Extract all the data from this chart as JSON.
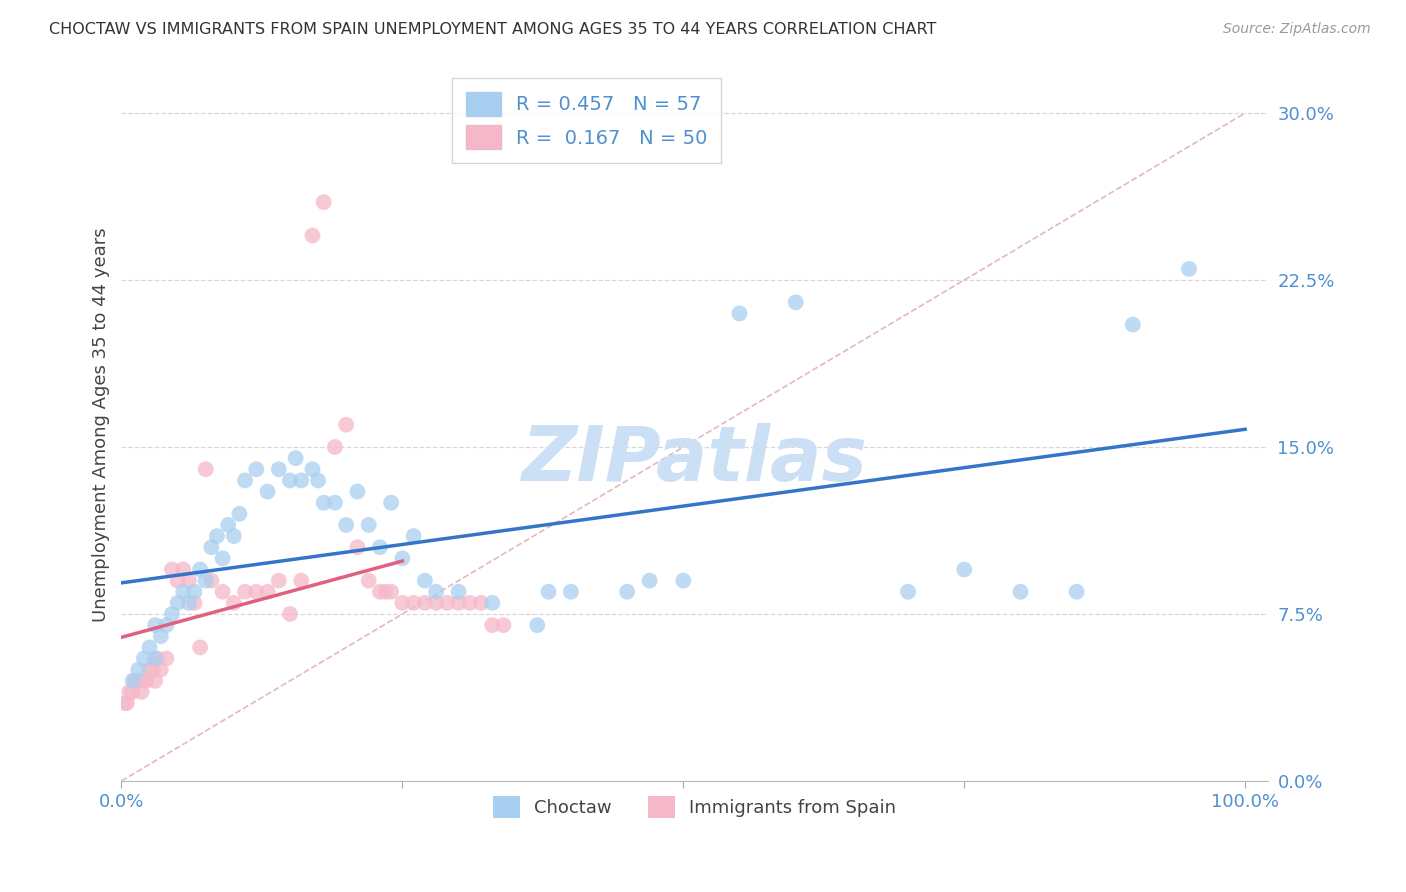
{
  "title": "CHOCTAW VS IMMIGRANTS FROM SPAIN UNEMPLOYMENT AMONG AGES 35 TO 44 YEARS CORRELATION CHART",
  "source": "Source: ZipAtlas.com",
  "ylabel": "Unemployment Among Ages 35 to 44 years",
  "ylabel_ticks": [
    0.0,
    7.5,
    15.0,
    22.5,
    30.0
  ],
  "xlim": [
    0,
    102
  ],
  "ylim": [
    0,
    32
  ],
  "choctaw_R": 0.457,
  "choctaw_N": 57,
  "spain_R": 0.167,
  "spain_N": 50,
  "choctaw_color": "#a8cff0",
  "spain_color": "#f5b8c8",
  "choctaw_line_color": "#3575c8",
  "spain_line_color": "#e06080",
  "diagonal_color": "#e0b0b8",
  "grid_color": "#d8d8d8",
  "watermark_color": "#cce0f5",
  "tick_color": "#5090d0",
  "background_color": "#ffffff",
  "choctaw_x": [
    1.0,
    1.5,
    2.0,
    2.5,
    3.0,
    3.0,
    3.5,
    4.0,
    4.5,
    5.0,
    5.5,
    6.0,
    6.5,
    7.0,
    7.5,
    8.0,
    8.5,
    9.0,
    9.5,
    10.0,
    10.5,
    11.0,
    12.0,
    13.0,
    14.0,
    15.0,
    15.5,
    16.0,
    17.0,
    17.5,
    18.0,
    19.0,
    20.0,
    21.0,
    22.0,
    23.0,
    24.0,
    25.0,
    26.0,
    27.0,
    28.0,
    30.0,
    33.0,
    37.0,
    38.0,
    40.0,
    45.0,
    47.0,
    50.0,
    55.0,
    60.0,
    70.0,
    75.0,
    80.0,
    85.0,
    90.0,
    95.0
  ],
  "choctaw_y": [
    4.5,
    5.0,
    5.5,
    6.0,
    5.5,
    7.0,
    6.5,
    7.0,
    7.5,
    8.0,
    8.5,
    8.0,
    8.5,
    9.5,
    9.0,
    10.5,
    11.0,
    10.0,
    11.5,
    11.0,
    12.0,
    13.5,
    14.0,
    13.0,
    14.0,
    13.5,
    14.5,
    13.5,
    14.0,
    13.5,
    12.5,
    12.5,
    11.5,
    13.0,
    11.5,
    10.5,
    12.5,
    10.0,
    11.0,
    9.0,
    8.5,
    8.5,
    8.0,
    7.0,
    8.5,
    8.5,
    8.5,
    9.0,
    9.0,
    21.0,
    21.5,
    8.5,
    9.5,
    8.5,
    8.5,
    20.5,
    23.0
  ],
  "spain_x": [
    0.3,
    0.5,
    0.7,
    1.0,
    1.2,
    1.5,
    1.8,
    2.0,
    2.2,
    2.5,
    2.8,
    3.0,
    3.2,
    3.5,
    4.0,
    4.5,
    5.0,
    5.5,
    6.0,
    6.5,
    7.0,
    7.5,
    8.0,
    9.0,
    10.0,
    11.0,
    12.0,
    13.0,
    14.0,
    15.0,
    16.0,
    17.0,
    18.0,
    19.0,
    20.0,
    21.0,
    22.0,
    23.0,
    23.5,
    24.0,
    25.0,
    26.0,
    27.0,
    28.0,
    29.0,
    30.0,
    31.0,
    32.0,
    33.0,
    34.0
  ],
  "spain_y": [
    3.5,
    3.5,
    4.0,
    4.0,
    4.5,
    4.5,
    4.0,
    4.5,
    4.5,
    5.0,
    5.0,
    4.5,
    5.5,
    5.0,
    5.5,
    9.5,
    9.0,
    9.5,
    9.0,
    8.0,
    6.0,
    14.0,
    9.0,
    8.5,
    8.0,
    8.5,
    8.5,
    8.5,
    9.0,
    7.5,
    9.0,
    24.5,
    26.0,
    15.0,
    16.0,
    10.5,
    9.0,
    8.5,
    8.5,
    8.5,
    8.0,
    8.0,
    8.0,
    8.0,
    8.0,
    8.0,
    8.0,
    8.0,
    7.0,
    7.0
  ]
}
